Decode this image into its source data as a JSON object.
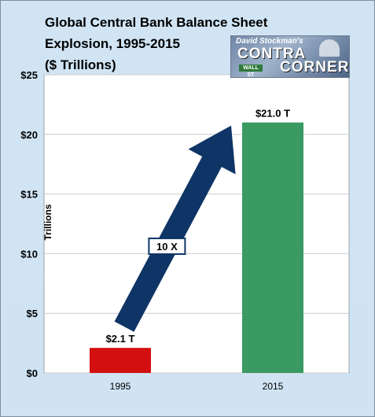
{
  "chart_data": {
    "type": "bar",
    "title_lines": [
      "Global Central Bank Balance Sheet",
      "Explosion, 1995-2015",
      "($ Trillions)"
    ],
    "categories": [
      "1995",
      "2015"
    ],
    "values": [
      2.1,
      21.0
    ],
    "data_labels": [
      "$2.1 T",
      "$21.0 T"
    ],
    "bar_colors": [
      "#d40f0f",
      "#3a9a62"
    ],
    "ylabel": "Trillions",
    "ylim": [
      0,
      25
    ],
    "yticks": [
      0,
      5,
      10,
      15,
      20,
      25
    ],
    "ytick_labels": [
      "$0",
      "$5",
      "$10",
      "$15",
      "$20",
      "$25"
    ],
    "grid": true,
    "annotation": {
      "label": "10 X",
      "arrow_color": "#0f3466"
    }
  },
  "badge": {
    "byline": "David Stockman's",
    "word1": "CONTRA",
    "word2": "CORNER",
    "sign": "WALL ST"
  }
}
